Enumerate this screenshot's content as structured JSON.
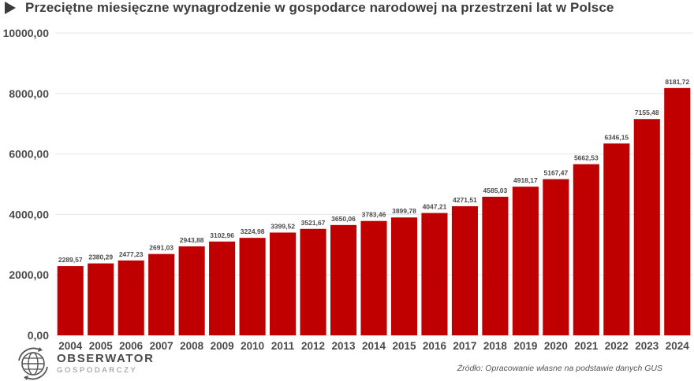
{
  "header": {
    "title": "Przeciętne miesięczne wynagrodzenie w gospodarce narodowej na przestrzeni lat w Polsce",
    "marker_icon": "play-triangle-icon"
  },
  "chart_data": {
    "type": "bar",
    "title": "Przeciętne miesięczne wynagrodzenie w gospodarce narodowej na przestrzeni lat w Polsce",
    "xlabel": "",
    "ylabel": "",
    "categories": [
      "2004",
      "2005",
      "2006",
      "2007",
      "2008",
      "2009",
      "2010",
      "2011",
      "2012",
      "2013",
      "2014",
      "2015",
      "2016",
      "2017",
      "2018",
      "2019",
      "2020",
      "2021",
      "2022",
      "2023",
      "2024"
    ],
    "values": [
      2289.57,
      2380.29,
      2477.23,
      2691.03,
      2943.88,
      3102.96,
      3224.98,
      3399.52,
      3521.67,
      3650.06,
      3783.46,
      3899.78,
      4047.21,
      4271.51,
      4585.03,
      4918.17,
      5167.47,
      5662.53,
      6346.15,
      7155.48,
      8181.72
    ],
    "data_labels": [
      "2289,57",
      "2380,29",
      "2477,23",
      "2691,03",
      "2943,88",
      "3102,96",
      "3224,98",
      "3399,52",
      "3521,67",
      "3650,06",
      "3783,46",
      "3899,78",
      "4047,21",
      "4271,51",
      "4585,03",
      "4918,17",
      "5167,47",
      "5662,53",
      "6346,15",
      "7155,48",
      "8181,72"
    ],
    "ylim": [
      0,
      10000
    ],
    "yticks": [
      0,
      2000,
      4000,
      6000,
      8000,
      10000
    ],
    "ytick_labels": [
      "0,00",
      "2000,00",
      "4000,00",
      "6000,00",
      "8000,00",
      "10000,00"
    ],
    "grid": true,
    "legend": "none",
    "bar_color": "#c00000",
    "grid_color": "#e6e6e6"
  },
  "footer": {
    "logo_icon": "globe-recycle-icon",
    "logo_line1": "OBSERWATOR",
    "logo_line2": "GOSPODARCZY",
    "source": "Źródło: Opracowanie własne na podstawie danych GUS"
  }
}
